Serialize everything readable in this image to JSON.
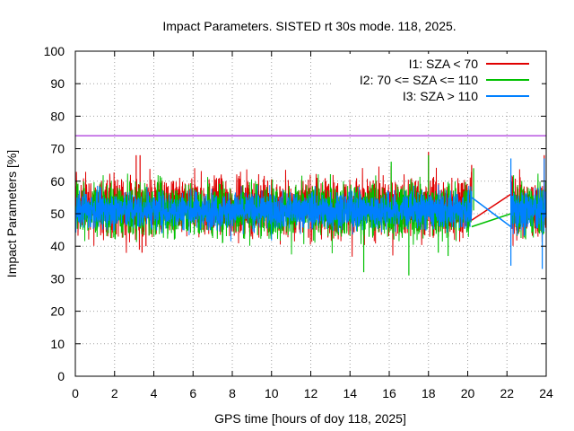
{
  "chart_data": {
    "type": "line",
    "title": "Impact Parameters. SISTED rt 30s mode. 118, 2025.",
    "xlabel": "GPS time [hours of doy 118, 2025]",
    "ylabel": "Impact Parameters [%]",
    "xlim": [
      0,
      24
    ],
    "ylim": [
      0,
      100
    ],
    "xticks": [
      0,
      2,
      4,
      6,
      8,
      10,
      12,
      14,
      16,
      18,
      20,
      22,
      24
    ],
    "yticks": [
      0,
      10,
      20,
      30,
      40,
      50,
      60,
      70,
      80,
      90,
      100
    ],
    "grid": true,
    "legend_position": "top-right",
    "reference_line": {
      "y": 74,
      "color": "#9400d3"
    },
    "series": [
      {
        "name": "I1: SZA < 70",
        "color": "#e00000",
        "segments": [
          {
            "t_start": 0,
            "t_end": 20.2,
            "base": 52,
            "noise": 4.5
          },
          {
            "t_start": 22.2,
            "t_end": 24,
            "base": 52,
            "noise": 4.5
          }
        ],
        "peaks": [
          [
            3.1,
            68
          ],
          [
            3.3,
            68
          ],
          [
            3.6,
            40
          ],
          [
            3.4,
            38
          ],
          [
            18.0,
            69
          ],
          [
            20.2,
            65
          ],
          [
            23.9,
            68
          ]
        ],
        "bridge": [
          [
            20.2,
            48
          ],
          [
            22.2,
            56
          ]
        ]
      },
      {
        "name": "I2: 70 <= SZA <= 110",
        "color": "#00c000",
        "segments": [
          {
            "t_start": 0,
            "t_end": 20.2,
            "base": 51,
            "noise": 4.0
          },
          {
            "t_start": 22.2,
            "t_end": 24,
            "base": 51,
            "noise": 4.0
          }
        ],
        "peaks": [
          [
            14.7,
            32
          ],
          [
            16.1,
            66
          ],
          [
            17.0,
            31
          ],
          [
            18.0,
            68
          ],
          [
            18.5,
            38
          ],
          [
            19.0,
            37
          ],
          [
            20.3,
            64
          ]
        ],
        "bridge": [
          [
            20.2,
            46
          ],
          [
            22.2,
            50
          ]
        ]
      },
      {
        "name": "I3: SZA > 110",
        "color": "#0080ff",
        "segments": [
          {
            "t_start": 0,
            "t_end": 20.2,
            "base": 51,
            "noise": 2.8
          },
          {
            "t_start": 22.2,
            "t_end": 24,
            "base": 51,
            "noise": 3.5
          }
        ],
        "peaks": [
          [
            22.2,
            34
          ],
          [
            22.2,
            67
          ],
          [
            23.8,
            33
          ],
          [
            23.9,
            67
          ]
        ],
        "bridge": [
          [
            20.2,
            55
          ],
          [
            22.2,
            46
          ]
        ]
      }
    ]
  }
}
